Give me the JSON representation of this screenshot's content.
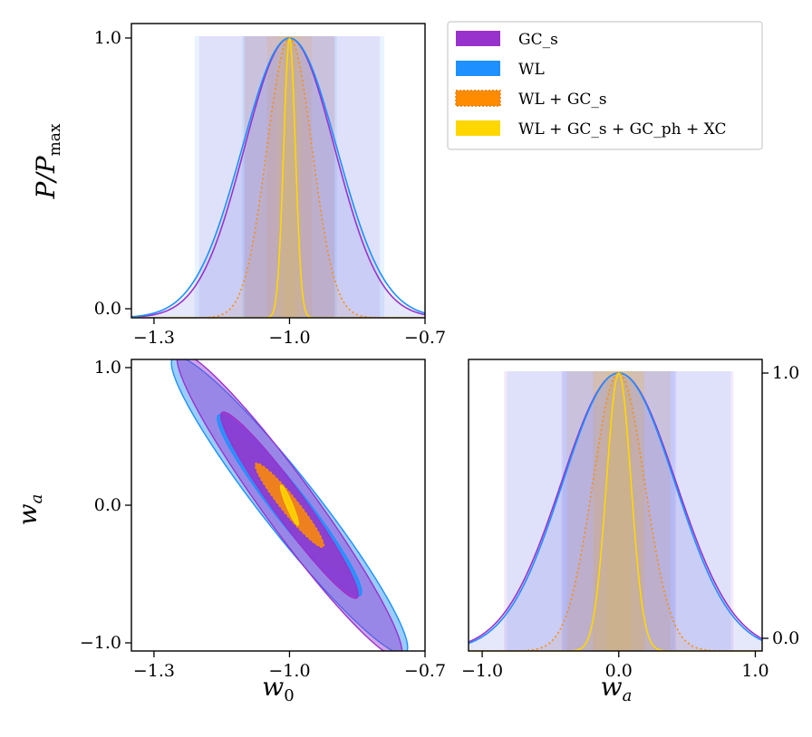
{
  "chart_data": {
    "type": "corner",
    "parameters": [
      "w0",
      "wa"
    ],
    "fiducial": {
      "w0": -1.0,
      "wa": 0.0
    },
    "legend": {
      "placement": "top-right",
      "entries": [
        {
          "label": "GC_s",
          "color": "#9932CC",
          "style": "solid"
        },
        {
          "label": "WL",
          "color": "#1E90FF",
          "style": "solid"
        },
        {
          "label": "WL + GC_s",
          "color": "#FF8C00",
          "style": "dotted"
        },
        {
          "label": "WL + GC_s + GC_ph + XC",
          "color": "#FFD700",
          "style": "solid"
        }
      ]
    },
    "series": [
      {
        "name": "GCs",
        "color": "#9932CC",
        "sigma_w0": 0.1,
        "sigma_wa": 0.42,
        "rho": -0.96
      },
      {
        "name": "WL",
        "color": "#1E90FF",
        "sigma_w0": 0.105,
        "sigma_wa": 0.41,
        "rho": -0.955
      },
      {
        "name": "WL+GCs",
        "color": "#FF8C00",
        "sigma_w0": 0.05,
        "sigma_wa": 0.19,
        "rho": -0.95
      },
      {
        "name": "WL+GCs+GCph+XC",
        "color": "#FFD700",
        "sigma_w0": 0.013,
        "sigma_wa": 0.09,
        "rho": -0.93
      }
    ],
    "panels": {
      "w0_marginal": {
        "xlim": [
          -1.35,
          -0.7
        ],
        "ylim": [
          0.0,
          1.0
        ],
        "xticks": [
          "−1.3",
          "−1.0",
          "−0.7"
        ],
        "yticks": [
          "0.0",
          "1.0"
        ],
        "ylabel": "P/P",
        "ylabel_sub": "max"
      },
      "w0_wa_contour": {
        "xlim": [
          -1.35,
          -0.7
        ],
        "ylim": [
          -1.0,
          1.0
        ],
        "xticks": [
          "−1.3",
          "−1.0",
          "−0.7"
        ],
        "yticks": [
          "−1.0",
          "0.0",
          "1.0"
        ],
        "xlabel": "w",
        "xlabel_sub": "0",
        "ylabel": "w",
        "ylabel_sub": "a"
      },
      "wa_marginal": {
        "xlim": [
          -1.1,
          1.05
        ],
        "ylim": [
          0.0,
          1.0
        ],
        "xticks": [
          "−1.0",
          "0.0",
          "1.0"
        ],
        "yticks": [
          "0.0",
          "1.0"
        ],
        "xlabel": "w",
        "xlabel_sub": "a"
      }
    }
  }
}
